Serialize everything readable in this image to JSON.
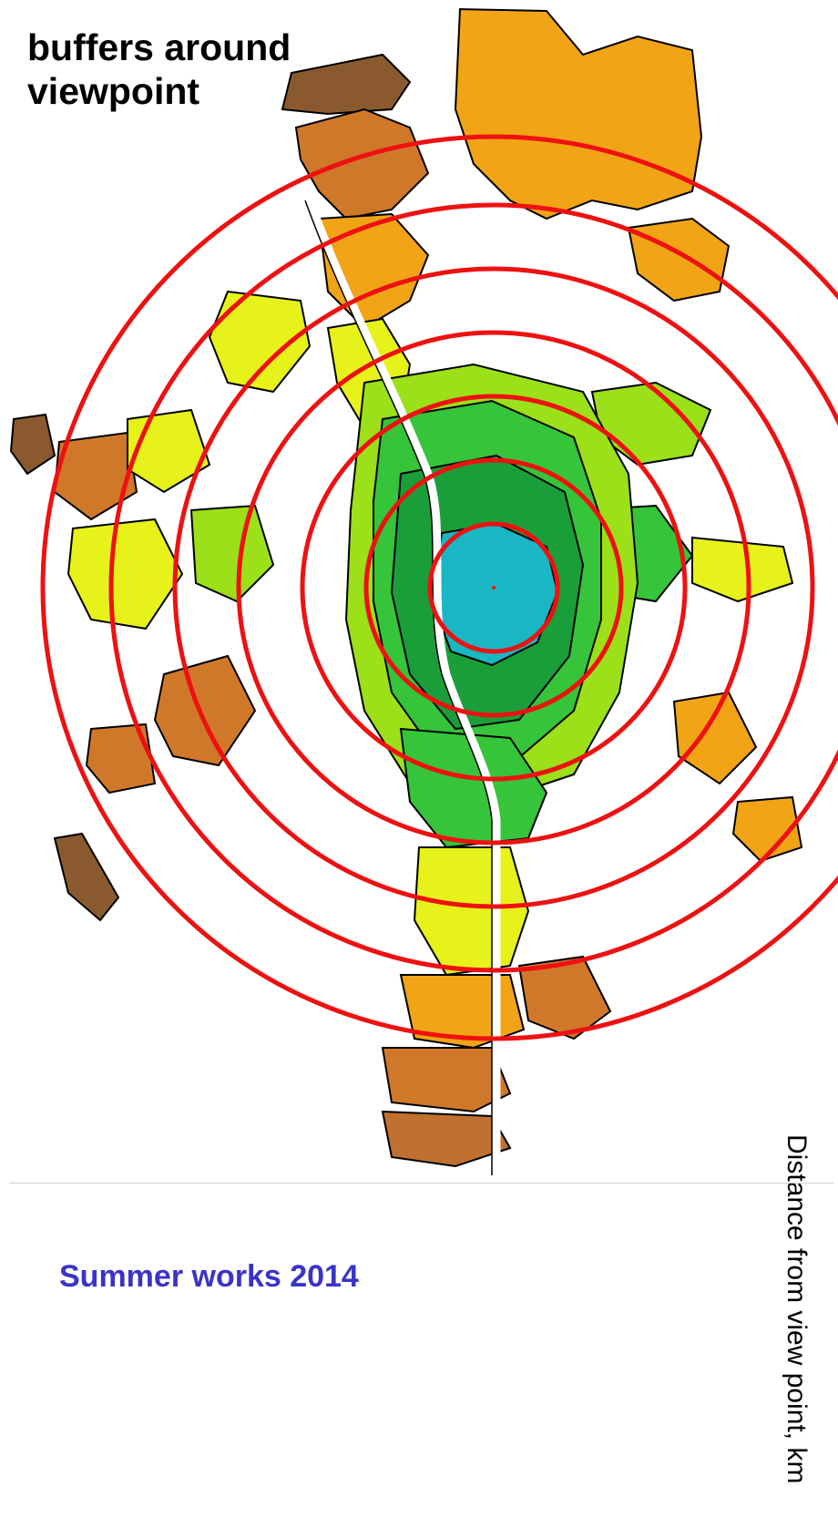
{
  "title": "buffers around viewpoint",
  "side_label": "Distance from view point, km",
  "footer": "Summer works 2014",
  "buffer_count": 7,
  "colors": {
    "buffer_ring": "#ee1111",
    "near": "#19b6c4",
    "close": "#1a9e3a",
    "mid_green": "#35c43a",
    "light_green": "#9be018",
    "yellow": "#e6f21a",
    "orange": "#f0a416",
    "dark_orange": "#d0782a",
    "brown": "#8a5a2e",
    "outline": "#000000",
    "footer_text": "#3a33c8"
  },
  "icons": {
    "viewpoint": "viewpoint-marker-icon"
  }
}
